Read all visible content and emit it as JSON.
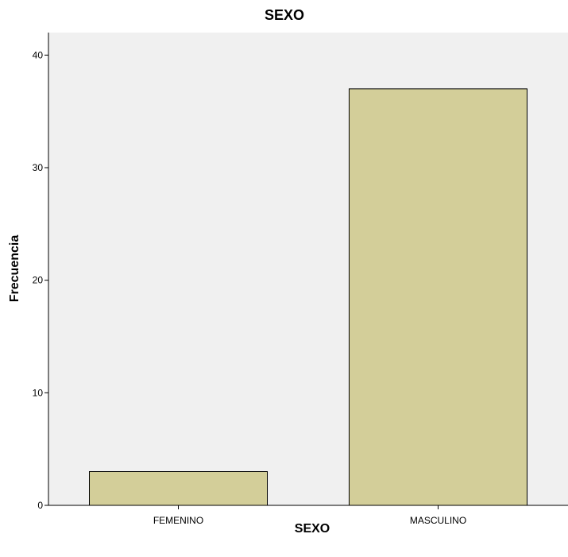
{
  "chart_data": {
    "type": "bar",
    "title": "SEXO",
    "xlabel": "SEXO",
    "ylabel": "Frecuencia",
    "categories": [
      "FEMENINO",
      "MASCULINO"
    ],
    "values": [
      3,
      37
    ],
    "ylim": [
      0,
      42
    ],
    "yticks": [
      0,
      10,
      20,
      30,
      40
    ],
    "grid": false,
    "legend": "none",
    "colors": {
      "bar_fill": "#d3ce99",
      "bar_stroke": "#000000",
      "plot_background": "#f0f0f0"
    }
  }
}
